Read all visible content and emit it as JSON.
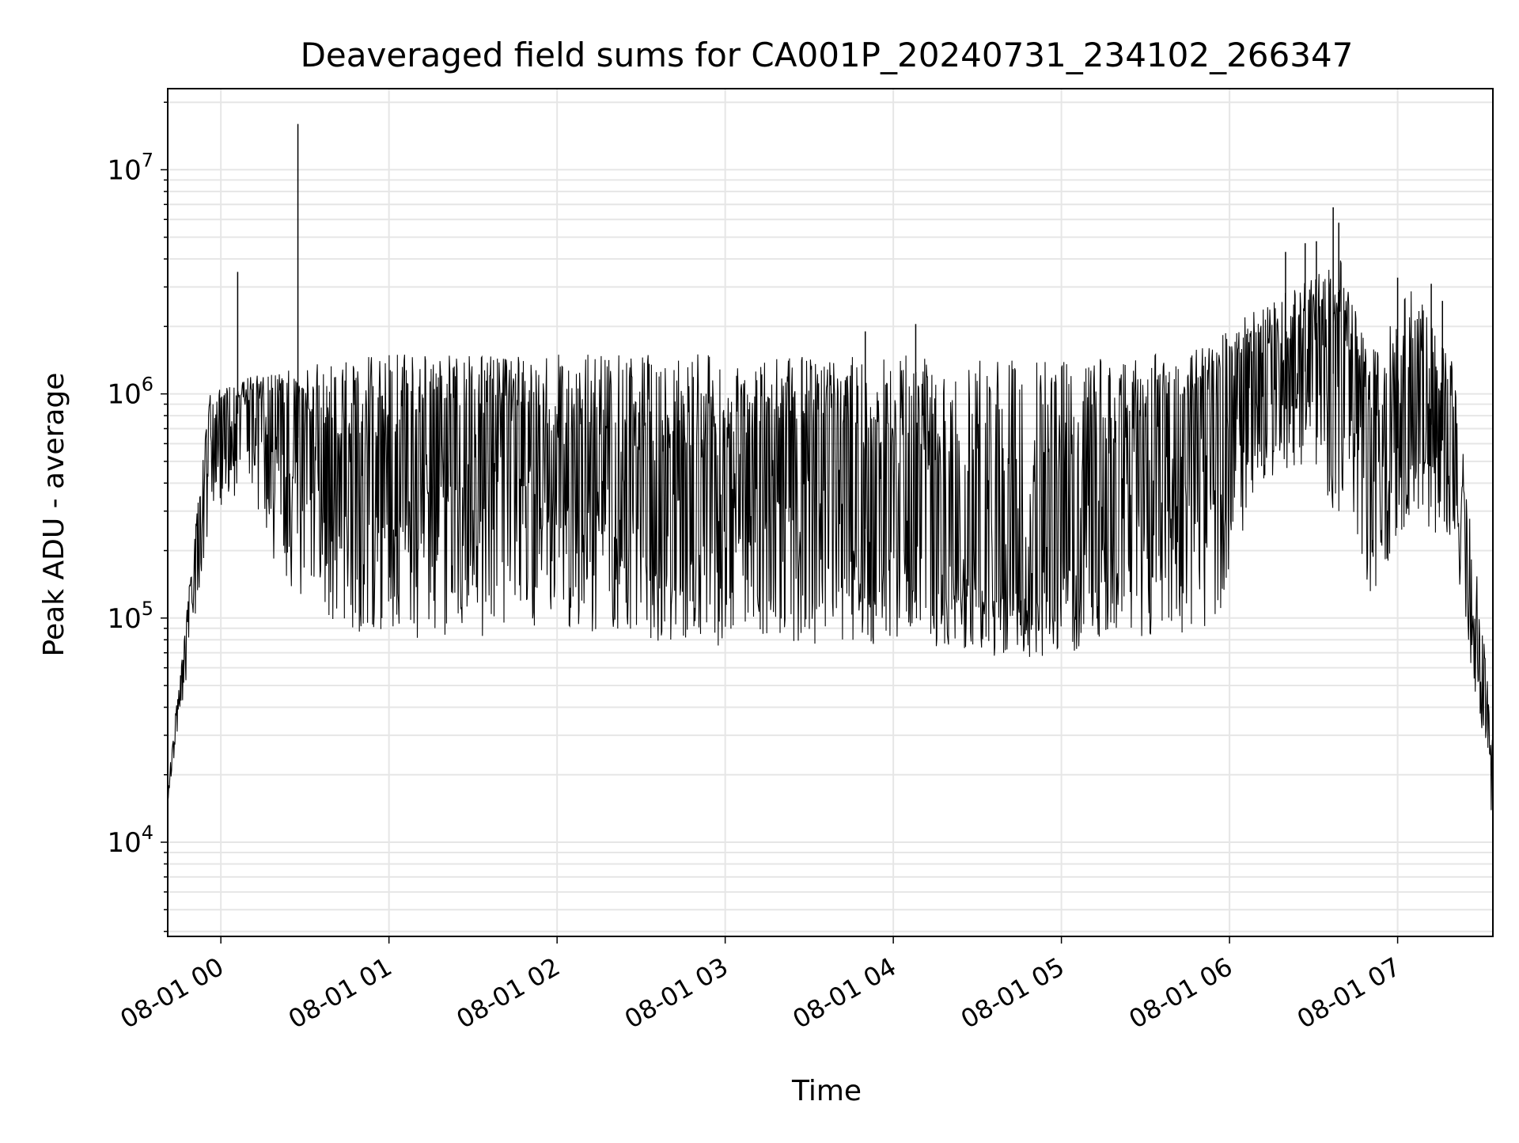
{
  "chart_data": {
    "type": "line",
    "title": "Deaveraged field sums for CA001P_20240731_234102_266347",
    "xlabel": "Time",
    "ylabel": "Peak ADU - average",
    "xscale": "time",
    "yscale": "log",
    "xlim": [
      "2024-07-31T23:41:02",
      "2024-08-01T07:34:00"
    ],
    "ylim": [
      3800,
      23000000
    ],
    "grid": true,
    "legend": "none",
    "line_color": "#000000",
    "grid_color": "#e6e6e6",
    "x_ticks": [
      {
        "value": "2024-08-01T00:00:00",
        "label": "08-01 00"
      },
      {
        "value": "2024-08-01T01:00:00",
        "label": "08-01 01"
      },
      {
        "value": "2024-08-01T02:00:00",
        "label": "08-01 02"
      },
      {
        "value": "2024-08-01T03:00:00",
        "label": "08-01 03"
      },
      {
        "value": "2024-08-01T04:00:00",
        "label": "08-01 04"
      },
      {
        "value": "2024-08-01T05:00:00",
        "label": "08-01 05"
      },
      {
        "value": "2024-08-01T06:00:00",
        "label": "08-01 06"
      },
      {
        "value": "2024-08-01T07:00:00",
        "label": "08-01 07"
      }
    ],
    "y_ticks": [
      {
        "value": 10000,
        "base": "10",
        "exp": "4"
      },
      {
        "value": 100000,
        "base": "10",
        "exp": "5"
      },
      {
        "value": 1000000,
        "base": "10",
        "exp": "6"
      },
      {
        "value": 10000000,
        "base": "10",
        "exp": "7"
      }
    ],
    "series": [
      {
        "baseline": [
          [
            "2024-07-31T23:41:02",
            15000
          ],
          [
            "2024-07-31T23:42:00",
            25000
          ],
          [
            "2024-07-31T23:44:00",
            40000
          ],
          [
            "2024-07-31T23:46:00",
            60000
          ],
          [
            "2024-07-31T23:48:00",
            90000
          ],
          [
            "2024-07-31T23:50:00",
            150000
          ],
          [
            "2024-07-31T23:52:00",
            250000
          ],
          [
            "2024-07-31T23:54:00",
            500000
          ],
          [
            "2024-07-31T23:56:00",
            800000
          ],
          [
            "2024-07-31T23:58:00",
            850000
          ],
          [
            "2024-08-01T00:10:00",
            800000
          ],
          [
            "2024-08-01T00:25:00",
            700000
          ],
          [
            "2024-08-01T00:40:00",
            400000
          ],
          [
            "2024-08-01T00:50:00",
            250000
          ],
          [
            "2024-08-01T01:00:00",
            350000
          ],
          [
            "2024-08-01T01:20:00",
            700000
          ],
          [
            "2024-08-01T01:40:00",
            600000
          ],
          [
            "2024-08-01T02:00:00",
            350000
          ],
          [
            "2024-08-01T02:30:00",
            250000
          ],
          [
            "2024-08-01T02:50:00",
            200000
          ],
          [
            "2024-08-01T03:15:00",
            500000
          ],
          [
            "2024-08-01T03:35:00",
            450000
          ],
          [
            "2024-08-01T03:50:00",
            250000
          ],
          [
            "2024-08-01T04:30:00",
            150000
          ],
          [
            "2024-08-01T04:50:00",
            120000
          ],
          [
            "2024-08-01T05:10:00",
            200000
          ],
          [
            "2024-08-01T05:30:00",
            500000
          ],
          [
            "2024-08-01T05:55:00",
            900000
          ],
          [
            "2024-08-01T06:15:00",
            1100000
          ],
          [
            "2024-08-01T06:30:00",
            1300000
          ],
          [
            "2024-08-01T06:40:00",
            1200000
          ],
          [
            "2024-08-01T06:50:00",
            400000
          ],
          [
            "2024-08-01T06:58:00",
            500000
          ],
          [
            "2024-08-01T07:05:00",
            800000
          ],
          [
            "2024-08-01T07:15:00",
            700000
          ],
          [
            "2024-08-01T07:22:00",
            300000
          ],
          [
            "2024-08-01T07:26:00",
            120000
          ],
          [
            "2024-08-01T07:30:00",
            50000
          ],
          [
            "2024-08-01T07:33:00",
            25000
          ],
          [
            "2024-08-01T07:34:00",
            12000
          ]
        ],
        "upper_envelope": [
          [
            "2024-07-31T23:41:02",
            15000
          ],
          [
            "2024-07-31T23:50:00",
            200000
          ],
          [
            "2024-07-31T23:56:00",
            1000000
          ],
          [
            "2024-08-01T00:10:00",
            1200000
          ],
          [
            "2024-08-01T00:40:00",
            1400000
          ],
          [
            "2024-08-01T01:00:00",
            1500000
          ],
          [
            "2024-08-01T02:00:00",
            1500000
          ],
          [
            "2024-08-01T03:00:00",
            1500000
          ],
          [
            "2024-08-01T04:00:00",
            1500000
          ],
          [
            "2024-08-01T05:00:00",
            1400000
          ],
          [
            "2024-08-01T05:50:00",
            1600000
          ],
          [
            "2024-08-01T06:20:00",
            3000000
          ],
          [
            "2024-08-01T06:40:00",
            4000000
          ],
          [
            "2024-08-01T06:50:00",
            1500000
          ],
          [
            "2024-08-01T07:05:00",
            3000000
          ],
          [
            "2024-08-01T07:20:00",
            1500000
          ],
          [
            "2024-08-01T07:30:00",
            100000
          ],
          [
            "2024-08-01T07:34:00",
            30000
          ]
        ],
        "lower_envelope": [
          [
            "2024-07-31T23:41:02",
            15000
          ],
          [
            "2024-07-31T23:56:00",
            250000
          ],
          [
            "2024-08-01T00:10:00",
            400000
          ],
          [
            "2024-08-01T00:20:00",
            150000
          ],
          [
            "2024-08-01T00:40:00",
            90000
          ],
          [
            "2024-08-01T01:00:00",
            80000
          ],
          [
            "2024-08-01T02:00:00",
            85000
          ],
          [
            "2024-08-01T03:00:00",
            75000
          ],
          [
            "2024-08-01T04:00:00",
            75000
          ],
          [
            "2024-08-01T04:50:00",
            65000
          ],
          [
            "2024-08-01T05:30:00",
            80000
          ],
          [
            "2024-08-01T05:55:00",
            90000
          ],
          [
            "2024-08-01T06:10:00",
            400000
          ],
          [
            "2024-08-01T06:30:00",
            500000
          ],
          [
            "2024-08-01T06:50:00",
            120000
          ],
          [
            "2024-08-01T07:05:00",
            300000
          ],
          [
            "2024-08-01T07:20:00",
            200000
          ],
          [
            "2024-08-01T07:28:00",
            40000
          ],
          [
            "2024-08-01T07:34:00",
            12000
          ]
        ],
        "spikes": [
          [
            "2024-08-01T00:06:00",
            3500000
          ],
          [
            "2024-08-01T00:27:30",
            16000000
          ],
          [
            "2024-08-01T03:50:00",
            1900000
          ],
          [
            "2024-08-01T04:08:00",
            2050000
          ],
          [
            "2024-08-01T06:20:00",
            4300000
          ],
          [
            "2024-08-01T06:27:00",
            4700000
          ],
          [
            "2024-08-01T06:31:00",
            4800000
          ],
          [
            "2024-08-01T06:37:00",
            6800000
          ],
          [
            "2024-08-01T06:39:00",
            5800000
          ],
          [
            "2024-08-01T07:00:00",
            3300000
          ],
          [
            "2024-08-01T07:12:00",
            3100000
          ],
          [
            "2024-08-01T07:16:00",
            2600000
          ]
        ]
      }
    ]
  }
}
